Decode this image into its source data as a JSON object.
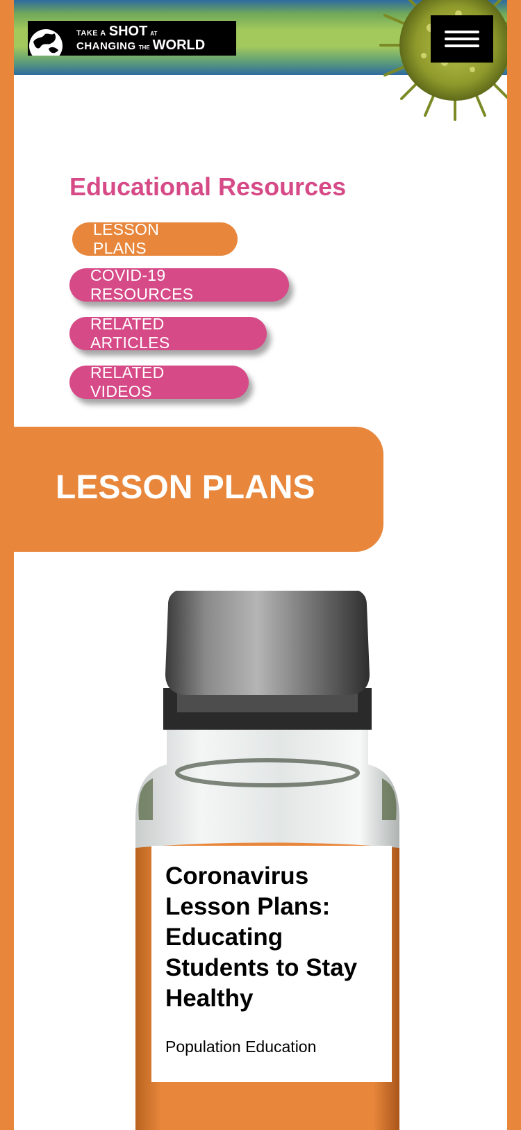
{
  "header": {
    "logo": {
      "line1_small": "TAKE A",
      "line1_big": "SHOT",
      "line1_small2": "AT",
      "line2_small": "CHANGING",
      "line2_tiny": "THE",
      "line2_big": "WORLD"
    },
    "menu_icon": "hamburger-menu-icon",
    "decor_icon": "virus-icon"
  },
  "resources": {
    "title": "Educational Resources",
    "buttons": [
      {
        "label": "LESSON PLANS",
        "state": "active"
      },
      {
        "label": "COVID-19 RESOURCES",
        "state": "inactive"
      },
      {
        "label": "RELATED ARTICLES",
        "state": "inactive"
      },
      {
        "label": "RELATED VIDEOS",
        "state": "inactive"
      }
    ]
  },
  "section": {
    "title": "LESSON PLANS"
  },
  "card": {
    "title": "Coronavirus Lesson Plans: Educating Students to Stay Healthy",
    "source": "Population Education",
    "image_icon": "vaccine-vial-icon"
  },
  "colors": {
    "orange": "#e8873c",
    "pink": "#d64a87",
    "black": "#000000"
  }
}
